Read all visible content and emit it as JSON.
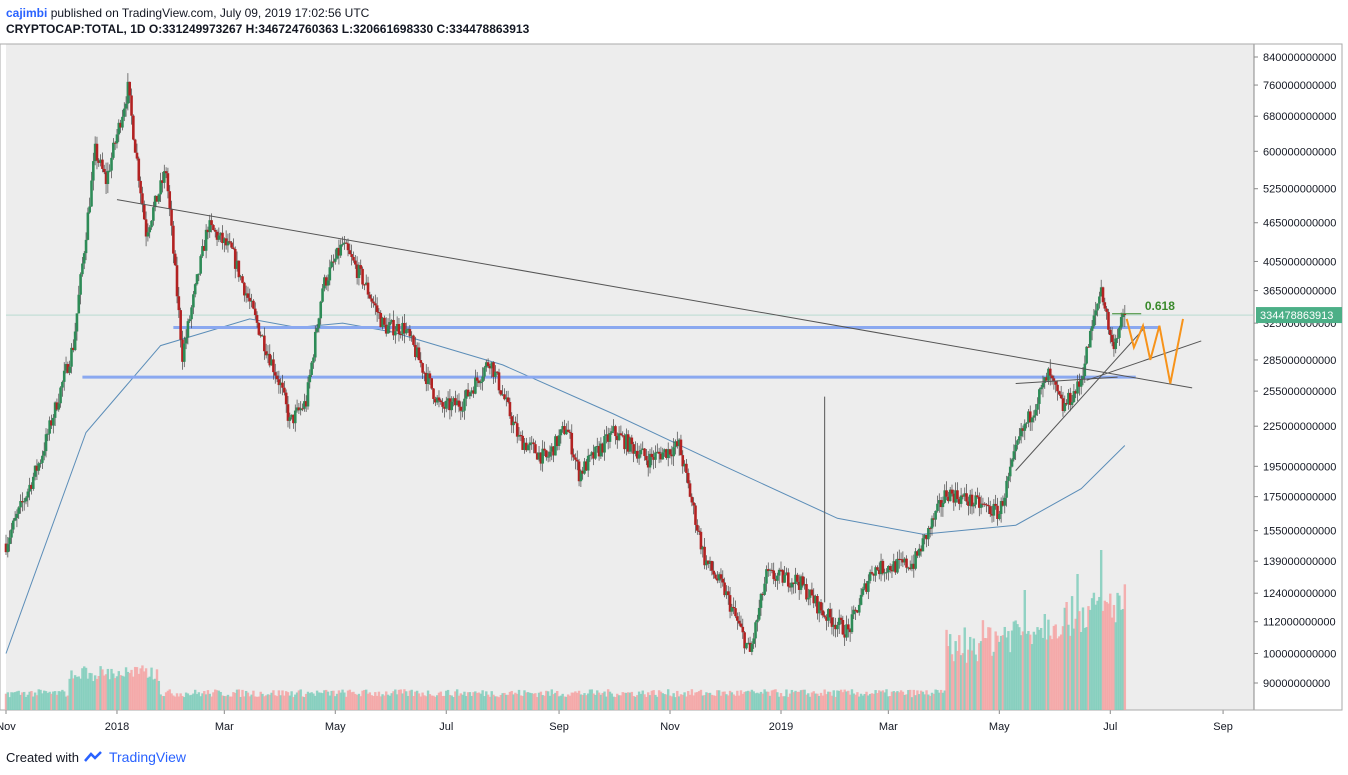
{
  "header": {
    "author": "cajimbi",
    "published": " published on TradingView.com, July 09, 2019 17:02:56 UTC",
    "symbol": "CRYPTOCAP:TOTAL, 1D",
    "ohlc": " O:331249973267  H:346724760363  L:320661698330  C:334478863913"
  },
  "footer": {
    "created_with": "Created with",
    "brand": "TradingView"
  },
  "colors": {
    "background": "#ededed",
    "up": "#2e8b57",
    "down": "#b22222",
    "vol_up": "#7fcdbb",
    "vol_down": "#f4a3a3",
    "ma": "#5b8db8",
    "level": "#8aa8f0",
    "trend": "#555555",
    "projection": "#f7931a",
    "fib": "#3a8a2c",
    "price_tag": "#4caf87"
  },
  "chart_data": {
    "type": "candlestick",
    "y_scale": "log",
    "y_ticks": [
      "840000000000",
      "760000000000",
      "680000000000",
      "600000000000",
      "525000000000",
      "465000000000",
      "405000000000",
      "365000000000",
      "325000000000",
      "285000000000",
      "255000000000",
      "225000000000",
      "195000000000",
      "175000000000",
      "155000000000",
      "139000000000",
      "124000000000",
      "112000000000",
      "100000000000",
      "90000000000"
    ],
    "x_ticks": [
      "Nov",
      "2018",
      "Mar",
      "May",
      "Jul",
      "Sep",
      "Nov",
      "2019",
      "Mar",
      "May",
      "Jul",
      "Sep"
    ],
    "x_range": [
      "2017-11-01",
      "2019-09-18"
    ],
    "last_price_label": "334478863913",
    "annotation": "0.618",
    "path_points": [
      [
        "2017-11-01",
        148000000000.0
      ],
      [
        "2017-11-20",
        200000000000.0
      ],
      [
        "2017-12-08",
        300000000000.0
      ],
      [
        "2017-12-20",
        600000000000.0
      ],
      [
        "2017-12-26",
        540000000000.0
      ],
      [
        "2018-01-07",
        750000000000.0
      ],
      [
        "2018-01-17",
        450000000000.0
      ],
      [
        "2018-01-28",
        560000000000.0
      ],
      [
        "2018-02-06",
        290000000000.0
      ],
      [
        "2018-02-20",
        460000000000.0
      ],
      [
        "2018-03-05",
        420000000000.0
      ],
      [
        "2018-03-18",
        330000000000.0
      ],
      [
        "2018-04-01",
        260000000000.0
      ],
      [
        "2018-04-06",
        228000000000.0
      ],
      [
        "2018-04-15",
        245000000000.0
      ],
      [
        "2018-04-24",
        370000000000.0
      ],
      [
        "2018-05-05",
        430000000000.0
      ],
      [
        "2018-05-16",
        380000000000.0
      ],
      [
        "2018-05-28",
        320000000000.0
      ],
      [
        "2018-06-08",
        320000000000.0
      ],
      [
        "2018-06-28",
        240000000000.0
      ],
      [
        "2018-07-10",
        245000000000.0
      ],
      [
        "2018-07-25",
        285000000000.0
      ],
      [
        "2018-08-10",
        215000000000.0
      ],
      [
        "2018-08-25",
        200000000000.0
      ],
      [
        "2018-09-05",
        225000000000.0
      ],
      [
        "2018-09-12",
        190000000000.0
      ],
      [
        "2018-10-01",
        220000000000.0
      ],
      [
        "2018-10-20",
        200000000000.0
      ],
      [
        "2018-11-06",
        210000000000.0
      ],
      [
        "2018-11-20",
        140000000000.0
      ],
      [
        "2018-12-01",
        125000000000.0
      ],
      [
        "2018-12-15",
        100000000000.0
      ],
      [
        "2018-12-24",
        132000000000.0
      ],
      [
        "2019-01-10",
        130000000000.0
      ],
      [
        "2019-01-25",
        115000000000.0
      ],
      [
        "2019-02-07",
        108000000000.0
      ],
      [
        "2019-02-20",
        135000000000.0
      ],
      [
        "2019-03-15",
        138000000000.0
      ],
      [
        "2019-04-02",
        178000000000.0
      ],
      [
        "2019-04-20",
        170000000000.0
      ],
      [
        "2019-05-01",
        165000000000.0
      ],
      [
        "2019-05-12",
        215000000000.0
      ],
      [
        "2019-05-28",
        270000000000.0
      ],
      [
        "2019-06-05",
        240000000000.0
      ],
      [
        "2019-06-14",
        260000000000.0
      ],
      [
        "2019-06-26",
        370000000000.0
      ],
      [
        "2019-07-02",
        300000000000.0
      ],
      [
        "2019-07-09",
        334500000000.0
      ]
    ],
    "ma_points": [
      [
        "2017-11-01",
        100000000000.0
      ],
      [
        "2017-12-15",
        220000000000.0
      ],
      [
        "2018-01-25",
        300000000000.0
      ],
      [
        "2018-03-15",
        330000000000.0
      ],
      [
        "2018-04-10",
        320000000000.0
      ],
      [
        "2018-05-05",
        325000000000.0
      ],
      [
        "2018-06-01",
        315000000000.0
      ],
      [
        "2018-08-01",
        280000000000.0
      ],
      [
        "2018-10-01",
        235000000000.0
      ],
      [
        "2018-12-01",
        195000000000.0
      ],
      [
        "2019-02-01",
        162000000000.0
      ],
      [
        "2019-03-20",
        153000000000.0
      ],
      [
        "2019-05-10",
        158000000000.0
      ],
      [
        "2019-06-15",
        180000000000.0
      ],
      [
        "2019-07-09",
        210000000000.0
      ]
    ],
    "levels": [
      {
        "value": 320000000000.0,
        "from": "2018-02-01",
        "to": "2019-07-28"
      },
      {
        "value": 268000000000.0,
        "from": "2017-12-13",
        "to": "2019-07-15"
      }
    ],
    "trendlines": [
      {
        "from": [
          "2018-01-01",
          505000000000.0
        ],
        "to": [
          "2019-08-15",
          258000000000.0
        ]
      },
      {
        "from": [
          "2019-05-10",
          192000000000.0
        ],
        "to": [
          "2019-07-20",
          320000000000.0
        ]
      },
      {
        "from": [
          "2019-06-18",
          265000000000.0
        ],
        "to": [
          "2019-08-20",
          305000000000.0
        ]
      },
      {
        "from": [
          "2019-05-10",
          262000000000.0
        ],
        "to": [
          "2019-07-05",
          268000000000.0
        ]
      }
    ],
    "projection": [
      [
        "2019-07-10",
        330000000000.0
      ],
      [
        "2019-07-14",
        298000000000.0
      ],
      [
        "2019-07-19",
        322000000000.0
      ],
      [
        "2019-07-23",
        285000000000.0
      ],
      [
        "2019-07-28",
        322000000000.0
      ],
      [
        "2019-08-03",
        262000000000.0
      ],
      [
        "2019-08-10",
        330000000000.0
      ]
    ],
    "volume_spikes": [
      [
        "2019-06-26",
        1.0
      ],
      [
        "2019-06-13",
        0.85
      ],
      [
        "2019-05-15",
        0.75
      ]
    ]
  }
}
